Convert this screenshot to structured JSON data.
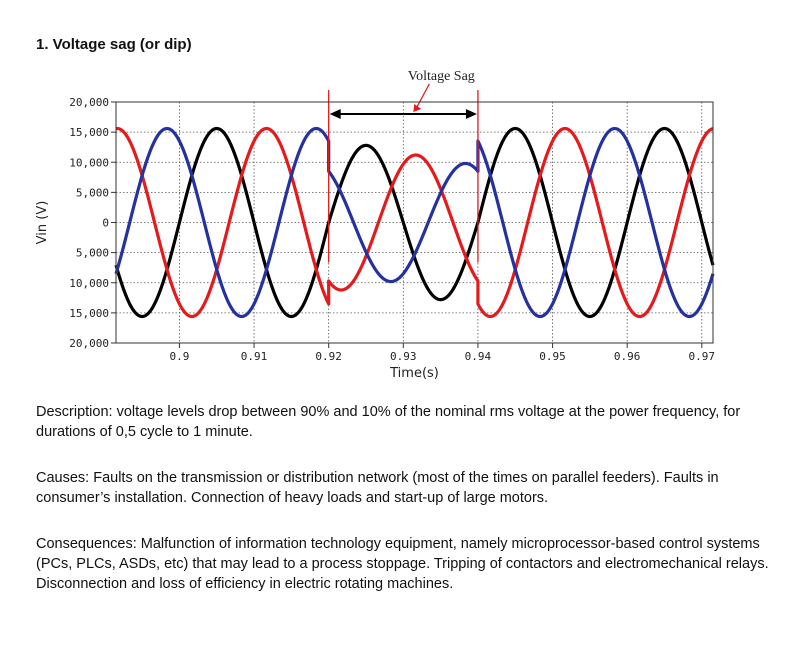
{
  "heading": "1. Voltage sag (or dip)",
  "chart_data": {
    "type": "line",
    "title": "",
    "xlabel": "Time(s)",
    "ylabel": "Vin (V)",
    "xlim": [
      0.8915,
      0.9715
    ],
    "ylim": [
      -20000,
      20000
    ],
    "x_ticks": [
      0.9,
      0.91,
      0.92,
      0.93,
      0.94,
      0.95,
      0.96,
      0.97
    ],
    "x_tick_labels": [
      "0.9",
      "0.91",
      "0.92",
      "0.93",
      "0.94",
      "0.95",
      "0.96",
      "0.97"
    ],
    "y_ticks": [
      20000,
      15000,
      10000,
      5000,
      0,
      -5000,
      -10000,
      -15000,
      -20000
    ],
    "y_tick_labels": [
      "20,000",
      "15,000",
      "10,000",
      "5,000",
      "0",
      "5,000",
      "10,000",
      "15,000",
      "20,000"
    ],
    "grid": true,
    "frequency_hz": 50,
    "nominal_amplitude": 15600,
    "sag_interval": [
      0.92,
      0.94
    ],
    "series": [
      {
        "color": "#000000",
        "phase_deg": 0,
        "sag_amplitude": 12800
      },
      {
        "color": "#e41a1c",
        "phase_deg": 120,
        "sag_amplitude": 11200
      },
      {
        "color": "#2432a0",
        "phase_deg": 240,
        "sag_amplitude": 9800
      }
    ],
    "annotation": {
      "text": "Voltage Sag",
      "color": "#e41a1c"
    }
  },
  "description": "Description:  voltage levels drop between 90% and 10% of the nominal rms voltage at the power frequency, for durations of 0,5 cycle to 1 minute.",
  "causes": "Causes: Faults on the transmission or distribution network (most of the times on parallel feeders). Faults in consumer’s installation. Connection of heavy loads and start-up of large motors.",
  "consequences": "Consequences: Malfunction of information technology equipment, namely microprocessor-based control systems (PCs, PLCs, ASDs, etc) that may lead to a process stoppage. Tripping of contactors and electromechanical relays. Disconnection and loss of efficiency in electric rotating machines."
}
